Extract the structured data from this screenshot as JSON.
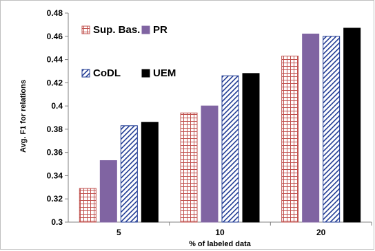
{
  "chart_data": {
    "type": "bar",
    "xlabel": "% of labeled data",
    "ylabel": "Avg. F1 for relations",
    "categories": [
      "5",
      "10",
      "20"
    ],
    "ylim": [
      0.3,
      0.48
    ],
    "ytick_step": 0.02,
    "yticks": [
      "0.3",
      "0.32",
      "0.34",
      "0.36",
      "0.38",
      "0.4",
      "0.42",
      "0.44",
      "0.46",
      "0.48"
    ],
    "grid": false,
    "legend_position": "top-left",
    "series": [
      {
        "name": "Sup. Bas.",
        "values": [
          0.329,
          0.394,
          0.443
        ],
        "pattern": "grid",
        "color": "#c0504d"
      },
      {
        "name": "PR",
        "values": [
          0.353,
          0.4,
          0.462
        ],
        "pattern": "solid",
        "color": "#8064a2"
      },
      {
        "name": "CoDL",
        "values": [
          0.383,
          0.426,
          0.46
        ],
        "pattern": "diagonal",
        "color": "#1f3a93"
      },
      {
        "name": "UEM",
        "values": [
          0.386,
          0.428,
          0.467
        ],
        "pattern": "solid",
        "color": "#000000"
      }
    ]
  }
}
